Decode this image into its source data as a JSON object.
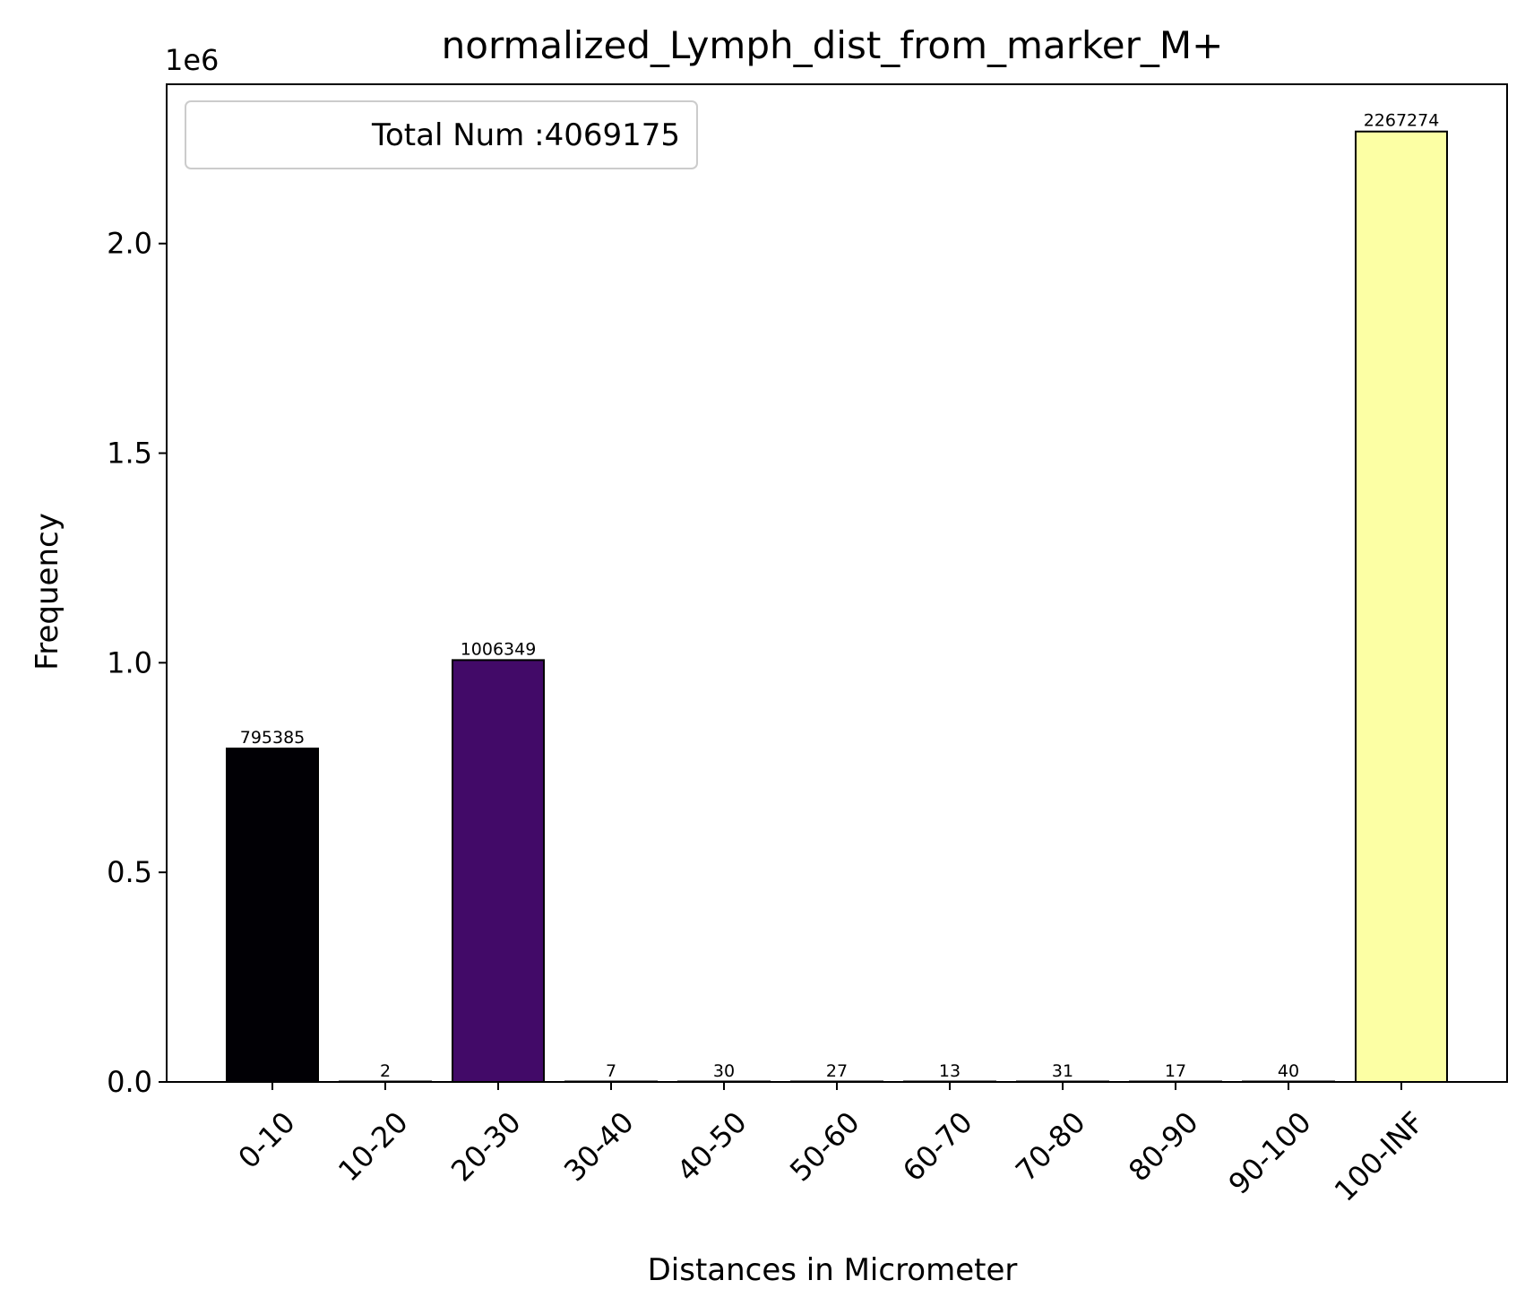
{
  "chart_data": {
    "type": "bar",
    "title": "normalized_Lymph_dist_from_marker_M+",
    "xlabel": "Distances in Micrometer",
    "ylabel": "Frequency",
    "y_offset_label": "1e6",
    "y_scale": 1000000,
    "ylim": [
      0,
      2380000
    ],
    "yticks": [
      0,
      500000,
      1000000,
      1500000,
      2000000
    ],
    "ytick_labels": [
      "0.0",
      "0.5",
      "1.0",
      "1.5",
      "2.0"
    ],
    "categories": [
      "0-10",
      "10-20",
      "20-30",
      "30-40",
      "40-50",
      "50-60",
      "60-70",
      "70-80",
      "80-90",
      "90-100",
      "100-INF"
    ],
    "values": [
      795385,
      2,
      1006349,
      7,
      30,
      27,
      13,
      31,
      17,
      40,
      2267274
    ],
    "value_labels": [
      "795385",
      "2",
      "1006349",
      "7",
      "30",
      "27",
      "13",
      "31",
      "17",
      "40",
      "2267274"
    ],
    "bar_colors": [
      "#010005",
      "#0c0826",
      "#420a68",
      "#6a176e",
      "#932667",
      "#bb3754",
      "#dd513a",
      "#f3771a",
      "#fca50a",
      "#f6d746",
      "#fcffa4"
    ],
    "bar_edge_color": "#000000",
    "legend": {
      "label": "Total Num :4069175",
      "placement": "upper left"
    },
    "grid": false
  }
}
